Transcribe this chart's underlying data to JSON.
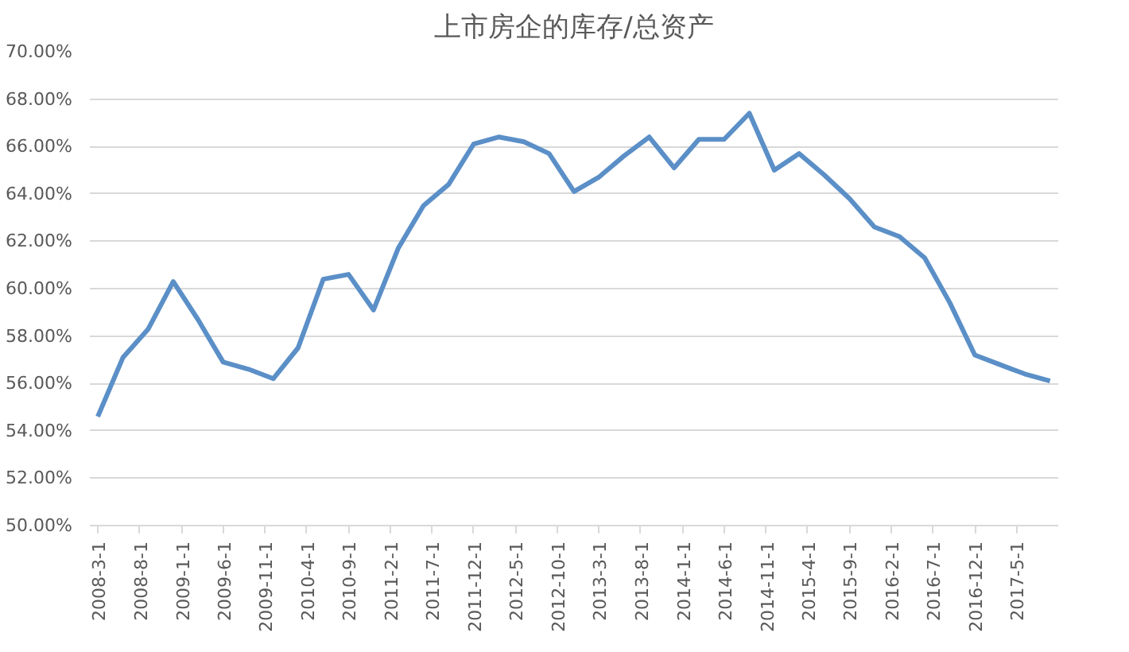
{
  "chart_data": {
    "type": "line",
    "title": "上市房企的库存/总资产",
    "x": [
      "2008-03",
      "2008-06",
      "2008-09",
      "2008-12",
      "2009-03",
      "2009-06",
      "2009-09",
      "2009-12",
      "2010-03",
      "2010-06",
      "2010-09",
      "2010-12",
      "2011-03",
      "2011-06",
      "2011-09",
      "2011-12",
      "2012-03",
      "2012-06",
      "2012-09",
      "2012-12",
      "2013-03",
      "2013-06",
      "2013-09",
      "2013-12",
      "2014-03",
      "2014-06",
      "2014-09",
      "2014-12",
      "2015-03",
      "2015-06",
      "2015-09",
      "2015-12",
      "2016-03",
      "2016-06",
      "2016-09",
      "2016-12",
      "2017-03",
      "2017-06",
      "2017-09"
    ],
    "series": [
      {
        "color": "#5b8fc7",
        "values": [
          54.6,
          57.1,
          58.3,
          60.3,
          58.7,
          56.9,
          56.6,
          56.2,
          57.5,
          60.4,
          60.6,
          59.1,
          61.7,
          63.5,
          64.4,
          66.1,
          66.4,
          66.2,
          65.7,
          64.1,
          64.7,
          65.6,
          66.4,
          65.1,
          66.3,
          66.3,
          67.4,
          65.0,
          65.7,
          64.8,
          63.8,
          62.6,
          62.2,
          61.3,
          59.4,
          57.2,
          56.8,
          56.4,
          56.1
        ]
      }
    ],
    "xlim": [
      "2008-02",
      "2017-10"
    ],
    "xticks": [
      {
        "value": "2008-03-01",
        "label": "2008-3-1"
      },
      {
        "value": "2008-08-01",
        "label": "2008-8-1"
      },
      {
        "value": "2009-01-01",
        "label": "2009-1-1"
      },
      {
        "value": "2009-06-01",
        "label": "2009-6-1"
      },
      {
        "value": "2009-11-01",
        "label": "2009-11-1"
      },
      {
        "value": "2010-04-01",
        "label": "2010-4-1"
      },
      {
        "value": "2010-09-01",
        "label": "2010-9-1"
      },
      {
        "value": "2011-02-01",
        "label": "2011-2-1"
      },
      {
        "value": "2011-07-01",
        "label": "2011-7-1"
      },
      {
        "value": "2011-12-01",
        "label": "2011-12-1"
      },
      {
        "value": "2012-05-01",
        "label": "2012-5-1"
      },
      {
        "value": "2012-10-01",
        "label": "2012-10-1"
      },
      {
        "value": "2013-03-01",
        "label": "2013-3-1"
      },
      {
        "value": "2013-08-01",
        "label": "2013-8-1"
      },
      {
        "value": "2014-01-01",
        "label": "2014-1-1"
      },
      {
        "value": "2014-06-01",
        "label": "2014-6-1"
      },
      {
        "value": "2014-11-01",
        "label": "2014-11-1"
      },
      {
        "value": "2015-04-01",
        "label": "2015-4-1"
      },
      {
        "value": "2015-09-01",
        "label": "2015-9-1"
      },
      {
        "value": "2016-02-01",
        "label": "2016-2-1"
      },
      {
        "value": "2016-07-01",
        "label": "2016-7-1"
      },
      {
        "value": "2016-12-01",
        "label": "2016-12-1"
      },
      {
        "value": "2017-05-01",
        "label": "2017-5-1"
      }
    ],
    "ylim": [
      50,
      70
    ],
    "yticks": [
      {
        "value": 50,
        "label": "50.00%"
      },
      {
        "value": 52,
        "label": "52.00%"
      },
      {
        "value": 54,
        "label": "54.00%"
      },
      {
        "value": 56,
        "label": "56.00%"
      },
      {
        "value": 58,
        "label": "58.00%"
      },
      {
        "value": 60,
        "label": "60.00%"
      },
      {
        "value": 62,
        "label": "62.00%"
      },
      {
        "value": 64,
        "label": "64.00%"
      },
      {
        "value": 66,
        "label": "66.00%"
      },
      {
        "value": 68,
        "label": "68.00%"
      },
      {
        "value": 70,
        "label": "70.00%"
      }
    ],
    "grid": "y",
    "line_style": "solid"
  }
}
